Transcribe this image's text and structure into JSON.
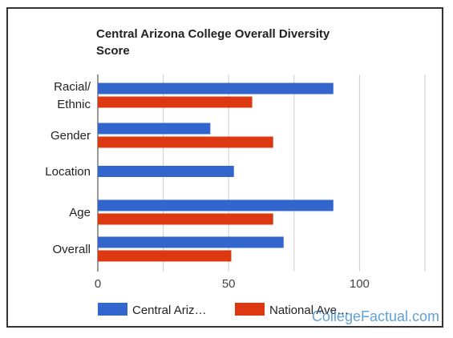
{
  "chart_data": {
    "type": "bar",
    "orientation": "horizontal",
    "title_lines": [
      "Central Arizona College Overall Diversity",
      "Score"
    ],
    "categories": [
      {
        "lines": [
          "Racial/",
          "Ethnic"
        ]
      },
      {
        "lines": [
          "Gender"
        ]
      },
      {
        "lines": [
          "Location"
        ]
      },
      {
        "lines": [
          "Age"
        ]
      },
      {
        "lines": [
          "Overall"
        ]
      }
    ],
    "series": [
      {
        "name": "Central Ariz…",
        "color": "#3366cc",
        "values": [
          90,
          43,
          52,
          90,
          71
        ]
      },
      {
        "name": "National Ave…",
        "color": "#dc3912",
        "values": [
          59,
          67,
          null,
          67,
          51
        ]
      }
    ],
    "xlim": [
      0,
      100
    ],
    "xticks": [
      "0",
      "50",
      "100"
    ],
    "grid": true,
    "legend_position": "bottom"
  },
  "watermark": "CollegeFactual.com"
}
